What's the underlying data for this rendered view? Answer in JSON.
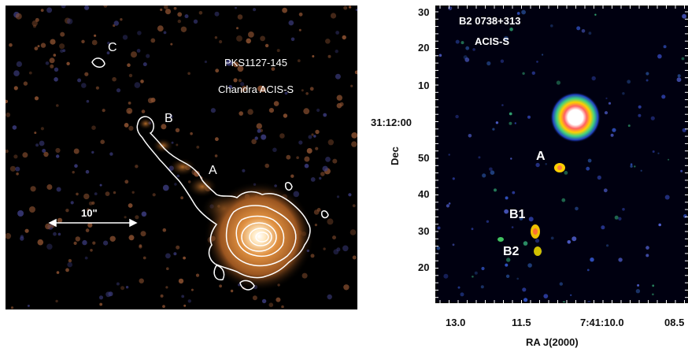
{
  "left_panel": {
    "labels": {
      "c": "C",
      "b": "B",
      "a": "A",
      "source": "PKS1127-145",
      "instrument": "Chandra ACIS-S",
      "scale": "10\""
    }
  },
  "right_panel": {
    "title_line1": "B2 0738+313",
    "title_line2": "ACIS-S",
    "feature_a": "A",
    "feature_b1": "B1",
    "feature_b2": "B2",
    "y_ticks": [
      "30",
      "20",
      "10",
      "31:12:00",
      "50",
      "40",
      "30",
      "20"
    ],
    "x_ticks": [
      "13.0",
      "11.5",
      "7:41:10.0",
      "08.5"
    ],
    "ylabel": "Dec",
    "xlabel": "RA  J(2000)"
  },
  "colors": {
    "left_background": "#000000",
    "jet_glow": "#c8782f",
    "contours": "#ffffff",
    "right_background": "#000010",
    "hot_core": "#ffffff"
  }
}
